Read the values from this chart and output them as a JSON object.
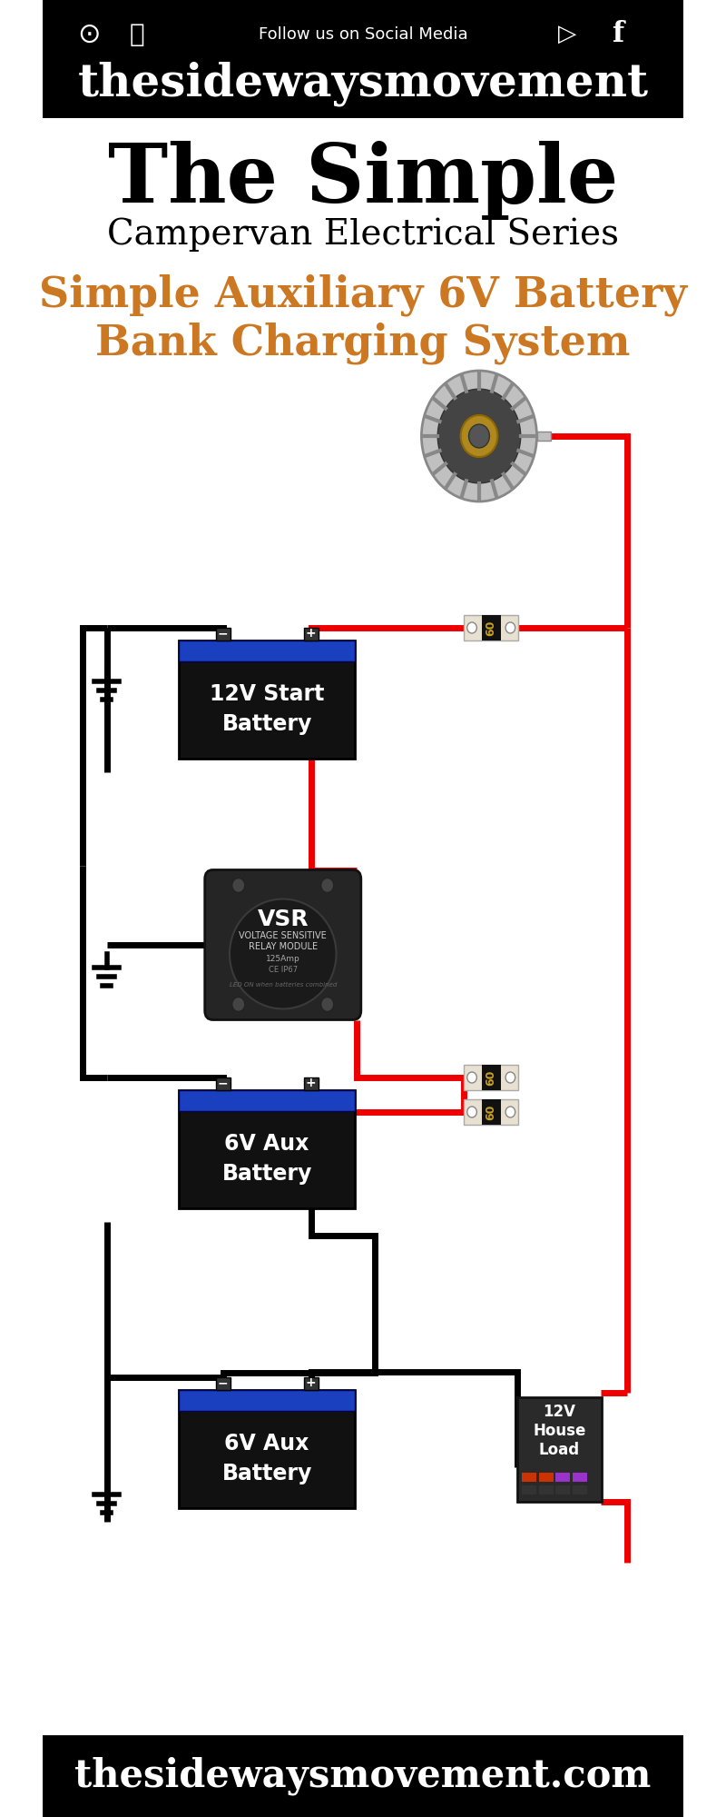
{
  "bg_color": "#ffffff",
  "header_bg": "#000000",
  "footer_bg": "#000000",
  "header_text1": "Follow us on Social Media",
  "header_brand": "thesidewaysmovement",
  "footer_text": "thesidewaysmovement.com",
  "title_line1": "The Simple",
  "title_line2": "Campervan Electrical Series",
  "subtitle_line1": "Simple Auxiliary 6V Battery",
  "subtitle_line2": "Bank Charging System",
  "subtitle_color": "#CC7722",
  "wire_red": "#ee0000",
  "wire_black": "#000000",
  "battery_12v_label": "12V Start\nBattery",
  "battery_6v_label1": "6V Aux\nBattery",
  "battery_6v_label2": "6V Aux\nBattery",
  "vsr_label": "VSR",
  "vsr_sub1": "VOLTAGE SENSITIVE",
  "vsr_sub2": "RELAY MODULE",
  "vsr_sub3": "125Amp",
  "vsr_sub4": "CE IP67",
  "vsr_sub5": "LED ON when batteries combined",
  "house_load_label": "12V\nHouse\nLoad",
  "battery_body_blue": "#1a3fbf",
  "battery_top_black": "#111111",
  "vsr_body": "#2a2a2a",
  "fuse_body": "#e8e0d0",
  "fuse_center": "#c8a020",
  "ground_color": "#000000",
  "lw_wire": 5
}
